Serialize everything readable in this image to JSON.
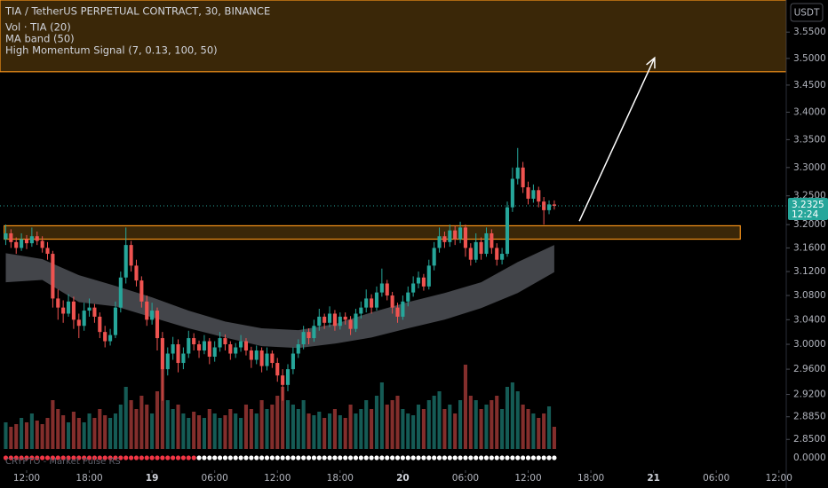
{
  "chart_data": {
    "type": "candlestick",
    "title": "TIA / TetherUS PERPETUAL CONTRACT, 30, BINANCE",
    "indicators": [
      "Vol · TIA (20)",
      "MA band (50)",
      "High Momentum Signal (7, 0.13, 100, 50)"
    ],
    "currency": "USDT",
    "watermark": "CRYPTO - Market Pulse RS",
    "log_scale": true,
    "up_color": "#26a69a",
    "down_color": "#ef5350",
    "xlim": [
      -1.1,
      149.4
    ],
    "ylim": [
      2.803,
      3.612
    ],
    "yticks": [
      {
        "value": 3.55,
        "label": "3.5500"
      },
      {
        "value": 3.5,
        "label": "3.5000"
      },
      {
        "value": 3.45,
        "label": "3.4500"
      },
      {
        "value": 3.4,
        "label": "3.4000"
      },
      {
        "value": 3.35,
        "label": "3.3500"
      },
      {
        "value": 3.3,
        "label": "3.3000"
      },
      {
        "value": 3.25,
        "label": "3.2500"
      },
      {
        "value": 3.2,
        "label": "3.2000"
      },
      {
        "value": 3.16,
        "label": "3.1600"
      },
      {
        "value": 3.12,
        "label": "3.1200"
      },
      {
        "value": 3.08,
        "label": "3.0800"
      },
      {
        "value": 3.04,
        "label": "3.0400"
      },
      {
        "value": 3.0,
        "label": "3.0000"
      },
      {
        "value": 2.96,
        "label": "2.9600"
      },
      {
        "value": 2.92,
        "label": "2.9200"
      },
      {
        "value": 2.885,
        "label": "2.8850"
      },
      {
        "value": 2.85,
        "label": "2.8500"
      }
    ],
    "xticks": [
      {
        "value": 4,
        "label": "12:00"
      },
      {
        "value": 16,
        "label": "18:00"
      },
      {
        "value": 28,
        "label": "19"
      },
      {
        "value": 40,
        "label": "06:00"
      },
      {
        "value": 52,
        "label": "12:00"
      },
      {
        "value": 64,
        "label": "18:00"
      },
      {
        "value": 76,
        "label": "20"
      },
      {
        "value": 88,
        "label": "06:00"
      },
      {
        "value": 100,
        "label": "12:00"
      },
      {
        "value": 112,
        "label": "18:00"
      },
      {
        "value": 124,
        "label": "21"
      },
      {
        "value": 136,
        "label": "06:00"
      },
      {
        "value": 148,
        "label": "12:00"
      }
    ],
    "candles": [
      [
        3.175,
        3.2,
        3.165,
        3.185
      ],
      [
        3.185,
        3.192,
        3.16,
        3.17
      ],
      [
        3.17,
        3.178,
        3.15,
        3.16
      ],
      [
        3.16,
        3.185,
        3.155,
        3.175
      ],
      [
        3.175,
        3.182,
        3.158,
        3.168
      ],
      [
        3.168,
        3.195,
        3.162,
        3.18
      ],
      [
        3.18,
        3.188,
        3.165,
        3.172
      ],
      [
        3.172,
        3.18,
        3.152,
        3.16
      ],
      [
        3.16,
        3.17,
        3.14,
        3.15
      ],
      [
        3.15,
        3.155,
        3.06,
        3.075
      ],
      [
        3.075,
        3.09,
        3.04,
        3.06
      ],
      [
        3.06,
        3.072,
        3.035,
        3.05
      ],
      [
        3.05,
        3.082,
        3.045,
        3.07
      ],
      [
        3.07,
        3.078,
        3.025,
        3.04
      ],
      [
        3.04,
        3.05,
        3.01,
        3.03
      ],
      [
        3.03,
        3.068,
        3.022,
        3.055
      ],
      [
        3.055,
        3.075,
        3.045,
        3.06
      ],
      [
        3.06,
        3.066,
        3.035,
        3.045
      ],
      [
        3.045,
        3.052,
        3.01,
        3.02
      ],
      [
        3.02,
        3.03,
        2.995,
        3.005
      ],
      [
        3.005,
        3.025,
        2.998,
        3.015
      ],
      [
        3.015,
        3.07,
        3.01,
        3.06
      ],
      [
        3.06,
        3.12,
        3.052,
        3.11
      ],
      [
        3.11,
        3.195,
        3.1,
        3.165
      ],
      [
        3.165,
        3.172,
        3.12,
        3.13
      ],
      [
        3.13,
        3.14,
        3.095,
        3.105
      ],
      [
        3.105,
        3.112,
        3.06,
        3.07
      ],
      [
        3.07,
        3.08,
        3.03,
        3.04
      ],
      [
        3.04,
        3.068,
        3.032,
        3.055
      ],
      [
        3.055,
        3.06,
        2.99,
        3.01
      ],
      [
        3.01,
        3.02,
        2.91,
        2.96
      ],
      [
        2.96,
        2.995,
        2.95,
        2.985
      ],
      [
        2.985,
        3.012,
        2.975,
        3.0
      ],
      [
        3.0,
        3.008,
        2.955,
        2.97
      ],
      [
        2.97,
        2.995,
        2.96,
        2.985
      ],
      [
        2.985,
        3.022,
        2.978,
        3.01
      ],
      [
        3.01,
        3.018,
        2.99,
        3.0
      ],
      [
        3.0,
        3.006,
        2.978,
        2.99
      ],
      [
        2.99,
        3.015,
        2.984,
        3.005
      ],
      [
        3.005,
        3.01,
        2.968,
        2.98
      ],
      [
        2.98,
        3.005,
        2.972,
        2.995
      ],
      [
        2.995,
        3.02,
        2.988,
        3.01
      ],
      [
        3.01,
        3.016,
        2.99,
        3.0
      ],
      [
        3.0,
        3.005,
        2.975,
        2.985
      ],
      [
        2.985,
        3.002,
        2.978,
        2.995
      ],
      [
        2.995,
        3.015,
        2.988,
        3.005
      ],
      [
        3.005,
        3.01,
        2.982,
        2.99
      ],
      [
        2.99,
        2.996,
        2.962,
        2.975
      ],
      [
        2.975,
        2.998,
        2.968,
        2.99
      ],
      [
        2.99,
        2.995,
        2.955,
        2.965
      ],
      [
        2.965,
        2.995,
        2.958,
        2.985
      ],
      [
        2.985,
        2.99,
        2.962,
        2.97
      ],
      [
        2.97,
        2.978,
        2.94,
        2.95
      ],
      [
        2.95,
        2.96,
        2.91,
        2.935
      ],
      [
        2.935,
        2.968,
        2.925,
        2.96
      ],
      [
        2.96,
        2.995,
        2.952,
        2.985
      ],
      [
        2.985,
        3.008,
        2.978,
        3.0
      ],
      [
        3.0,
        3.03,
        2.992,
        3.02
      ],
      [
        3.02,
        3.026,
        3.0,
        3.01
      ],
      [
        3.01,
        3.04,
        3.004,
        3.03
      ],
      [
        3.03,
        3.058,
        3.022,
        3.045
      ],
      [
        3.045,
        3.05,
        3.025,
        3.035
      ],
      [
        3.035,
        3.062,
        3.028,
        3.05
      ],
      [
        3.05,
        3.056,
        3.022,
        3.03
      ],
      [
        3.03,
        3.052,
        3.024,
        3.045
      ],
      [
        3.045,
        3.052,
        3.032,
        3.04
      ],
      [
        3.04,
        3.046,
        3.015,
        3.025
      ],
      [
        3.025,
        3.058,
        3.02,
        3.05
      ],
      [
        3.05,
        3.07,
        3.042,
        3.06
      ],
      [
        3.06,
        3.09,
        3.052,
        3.075
      ],
      [
        3.075,
        3.082,
        3.05,
        3.06
      ],
      [
        3.06,
        3.095,
        3.055,
        3.085
      ],
      [
        3.085,
        3.125,
        3.078,
        3.1
      ],
      [
        3.1,
        3.106,
        3.072,
        3.08
      ],
      [
        3.08,
        3.086,
        3.05,
        3.06
      ],
      [
        3.06,
        3.068,
        3.035,
        3.045
      ],
      [
        3.045,
        3.08,
        3.04,
        3.07
      ],
      [
        3.07,
        3.095,
        3.062,
        3.085
      ],
      [
        3.085,
        3.112,
        3.078,
        3.1
      ],
      [
        3.1,
        3.12,
        3.092,
        3.11
      ],
      [
        3.11,
        3.116,
        3.088,
        3.095
      ],
      [
        3.095,
        3.14,
        3.09,
        3.13
      ],
      [
        3.13,
        3.17,
        3.122,
        3.16
      ],
      [
        3.16,
        3.195,
        3.152,
        3.18
      ],
      [
        3.18,
        3.188,
        3.16,
        3.17
      ],
      [
        3.17,
        3.2,
        3.162,
        3.19
      ],
      [
        3.19,
        3.198,
        3.165,
        3.175
      ],
      [
        3.175,
        3.205,
        3.168,
        3.195
      ],
      [
        3.195,
        3.2,
        3.145,
        3.16
      ],
      [
        3.16,
        3.168,
        3.13,
        3.14
      ],
      [
        3.14,
        3.185,
        3.135,
        3.17
      ],
      [
        3.17,
        3.178,
        3.14,
        3.15
      ],
      [
        3.15,
        3.195,
        3.145,
        3.185
      ],
      [
        3.185,
        3.192,
        3.15,
        3.16
      ],
      [
        3.16,
        3.168,
        3.13,
        3.14
      ],
      [
        3.14,
        3.16,
        3.132,
        3.15
      ],
      [
        3.15,
        3.24,
        3.145,
        3.23
      ],
      [
        3.23,
        3.3,
        3.222,
        3.28
      ],
      [
        3.28,
        3.335,
        3.27,
        3.3
      ],
      [
        3.3,
        3.31,
        3.255,
        3.265
      ],
      [
        3.265,
        3.275,
        3.235,
        3.245
      ],
      [
        3.245,
        3.27,
        3.238,
        3.26
      ],
      [
        3.26,
        3.266,
        3.23,
        3.24
      ],
      [
        3.24,
        3.248,
        3.2,
        3.225
      ],
      [
        3.225,
        3.242,
        3.218,
        3.235
      ],
      [
        3.235,
        3.242,
        3.226,
        3.2325
      ]
    ],
    "volume": [
      30,
      25,
      28,
      35,
      30,
      40,
      32,
      28,
      35,
      55,
      45,
      38,
      30,
      42,
      35,
      30,
      40,
      35,
      45,
      38,
      35,
      40,
      50,
      70,
      55,
      45,
      60,
      50,
      40,
      65,
      90,
      55,
      45,
      50,
      40,
      35,
      42,
      38,
      35,
      45,
      40,
      35,
      38,
      45,
      40,
      35,
      50,
      45,
      40,
      55,
      45,
      50,
      60,
      70,
      55,
      50,
      45,
      55,
      40,
      38,
      42,
      35,
      40,
      45,
      38,
      35,
      50,
      40,
      45,
      55,
      45,
      60,
      75,
      50,
      55,
      60,
      45,
      40,
      38,
      50,
      45,
      55,
      60,
      65,
      45,
      50,
      40,
      55,
      95,
      60,
      55,
      45,
      50,
      55,
      60,
      45,
      70,
      75,
      65,
      50,
      45,
      40,
      35,
      40,
      48,
      25
    ],
    "vlim": [
      0,
      100
    ],
    "ma_band": {
      "x": [
        0,
        7,
        14,
        21,
        28,
        35,
        42,
        49,
        56,
        63,
        70,
        77,
        84,
        91,
        98,
        105
      ],
      "upper": [
        3.151,
        3.141,
        3.114,
        3.096,
        3.077,
        3.055,
        3.037,
        3.026,
        3.023,
        3.033,
        3.052,
        3.069,
        3.084,
        3.102,
        3.136,
        3.165
      ],
      "lower": [
        3.102,
        3.106,
        3.069,
        3.062,
        3.044,
        3.026,
        3.011,
        2.997,
        2.994,
        3.001,
        3.011,
        3.026,
        3.04,
        3.059,
        3.084,
        3.119
      ],
      "color": "#5a5c63"
    },
    "signal": {
      "axis_label": {
        "value": 0,
        "label": "0.0000"
      },
      "values": [
        0,
        0,
        0,
        0,
        0,
        0,
        0,
        0,
        0,
        0,
        0,
        0,
        0,
        0,
        0,
        0,
        0,
        0,
        0,
        0,
        0,
        0,
        0,
        0,
        0,
        0,
        0,
        0,
        0,
        0,
        0,
        0,
        0,
        0,
        0,
        0,
        0,
        0,
        0,
        0,
        0,
        0,
        0,
        0,
        0,
        0,
        0,
        0,
        0,
        0,
        0,
        0,
        0,
        0,
        0,
        0,
        0,
        0,
        0,
        0,
        0,
        0,
        0,
        0,
        0,
        0,
        0,
        0,
        0,
        0,
        0,
        0,
        0,
        0,
        0,
        0,
        0,
        0,
        0,
        0,
        0,
        0,
        0,
        0,
        0,
        0,
        0,
        0,
        0,
        0,
        0,
        0,
        0,
        0,
        0,
        0,
        0,
        0,
        0,
        0,
        0,
        0,
        0,
        0,
        0,
        0
      ],
      "colors": [
        "#f23645",
        "#f23645",
        "#f23645",
        "#f23645",
        "#f23645",
        "#f23645",
        "#f23645",
        "#f23645",
        "#f23645",
        "#f23645",
        "#f23645",
        "#f23645",
        "#f23645",
        "#f23645",
        "#f23645",
        "#f23645",
        "#f23645",
        "#f23645",
        "#f23645",
        "#f23645",
        "#f23645",
        "#f23645",
        "#f23645",
        "#f23645",
        "#f23645",
        "#f23645",
        "#f23645",
        "#f23645",
        "#f23645",
        "#f23645",
        "#f23645",
        "#f23645",
        "#f23645",
        "#f23645",
        "#f23645",
        "#f23645",
        "#f23645",
        "#ffffff",
        "#ffffff",
        "#ffffff",
        "#ffffff",
        "#ffffff",
        "#ffffff",
        "#ffffff",
        "#ffffff",
        "#ffffff",
        "#ffffff",
        "#ffffff",
        "#ffffff",
        "#ffffff",
        "#ffffff",
        "#ffffff",
        "#ffffff",
        "#ffffff",
        "#ffffff",
        "#ffffff",
        "#ffffff",
        "#ffffff",
        "#ffffff",
        "#ffffff",
        "#ffffff",
        "#ffffff",
        "#ffffff",
        "#ffffff",
        "#ffffff",
        "#ffffff",
        "#ffffff",
        "#ffffff",
        "#ffffff",
        "#ffffff",
        "#ffffff",
        "#ffffff",
        "#ffffff",
        "#ffffff",
        "#ffffff",
        "#ffffff",
        "#ffffff",
        "#ffffff",
        "#ffffff",
        "#ffffff",
        "#ffffff",
        "#ffffff",
        "#ffffff",
        "#ffffff",
        "#ffffff",
        "#ffffff",
        "#ffffff",
        "#ffffff",
        "#ffffff",
        "#ffffff",
        "#ffffff",
        "#ffffff",
        "#ffffff",
        "#ffffff",
        "#ffffff",
        "#ffffff",
        "#ffffff",
        "#ffffff",
        "#ffffff",
        "#ffffff",
        "#ffffff",
        "#ffffff",
        "#ffffff",
        "#ffffff",
        "#ffffff",
        "#ffffff"
      ]
    },
    "zones": [
      {
        "price_range": [
          3.475,
          3.612
        ],
        "fill": "#3a2708",
        "stroke": "#f7931a"
      },
      {
        "price_range": [
          3.175,
          3.198
        ],
        "index_range": [
          -0.3,
          140.6
        ],
        "fill": "#3a2708",
        "stroke": "#f7931a"
      }
    ],
    "arrow": {
      "from": [
        109.8,
        3.206
      ],
      "to": [
        124.2,
        3.501
      ],
      "color": "#ffffff"
    },
    "last_price": 3.2325,
    "countdown": "12:24"
  }
}
